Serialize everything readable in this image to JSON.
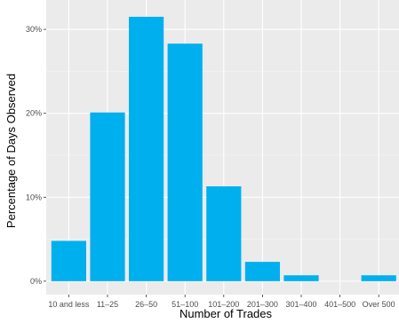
{
  "chart_data": {
    "type": "bar",
    "title": "",
    "xlabel": "Number of Trades",
    "ylabel": "Percentage of Days Observed",
    "categories": [
      "10 and less",
      "11–25",
      "26–50",
      "51–100",
      "101–200",
      "201–300",
      "301–400",
      "401–500",
      "Over 500"
    ],
    "values": [
      4.8,
      20.1,
      31.5,
      28.3,
      11.3,
      2.3,
      0.7,
      0.0,
      0.7
    ],
    "y_ticks": [
      0,
      10,
      20,
      30
    ],
    "y_tick_labels": [
      "0%",
      "10%",
      "20%",
      "30%"
    ],
    "ylim": [
      -1.6,
      33.5
    ],
    "grid": true,
    "colors": {
      "bar": "#00B0EE",
      "panel_background": "#EBEBEB",
      "grid_major": "#FFFFFF",
      "grid_minor": "#F5F5F5"
    }
  }
}
